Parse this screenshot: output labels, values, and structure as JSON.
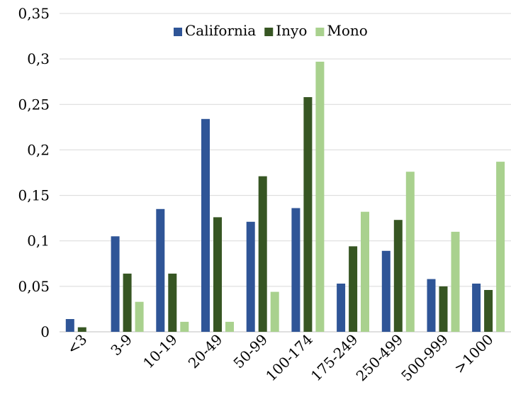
{
  "chart_data": {
    "type": "bar",
    "title": "",
    "xlabel": "",
    "ylabel": "",
    "categories": [
      "<3",
      "3-9",
      "10-19",
      "20-49",
      "50-99",
      "100-174",
      "175-249",
      "250-499",
      "500-999",
      ">1000"
    ],
    "series": [
      {
        "name": "California",
        "color": "#2f5597",
        "values": [
          0.014,
          0.105,
          0.135,
          0.234,
          0.121,
          0.136,
          0.053,
          0.089,
          0.058,
          0.053
        ]
      },
      {
        "name": "Inyo",
        "color": "#375623",
        "values": [
          0.005,
          0.064,
          0.064,
          0.126,
          0.171,
          0.258,
          0.094,
          0.123,
          0.05,
          0.046
        ]
      },
      {
        "name": "Mono",
        "color": "#a9d18e",
        "values": [
          0.0,
          0.033,
          0.011,
          0.011,
          0.044,
          0.297,
          0.132,
          0.176,
          0.11,
          0.187
        ]
      }
    ],
    "ylim": [
      0,
      0.35
    ],
    "yticks": [
      0,
      0.05,
      0.1,
      0.15,
      0.2,
      0.25,
      0.3,
      0.35
    ],
    "ytick_labels": [
      "0",
      "0,05",
      "0,1",
      "0,15",
      "0,2",
      "0,25",
      "0,3",
      "0,35"
    ],
    "grid": true,
    "legend_position": "top-right"
  }
}
